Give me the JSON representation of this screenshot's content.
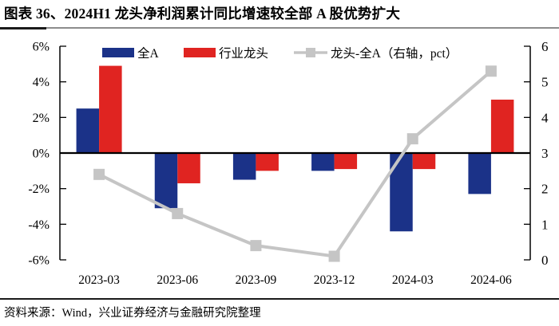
{
  "header": {
    "title": "图表 36、2024H1 龙头净利润累计同比增速较全部 A 股优势扩大"
  },
  "footer": {
    "source": "资料来源：Wind，兴业证券经济与金融研究院整理"
  },
  "colors": {
    "bar_all_a": "#1B3288",
    "bar_leaders": "#E02421",
    "line_diff": "#C5C5C5",
    "axis": "#000000",
    "text": "#000000",
    "rule_dark": "#1A1A1A",
    "rule_gray": "#8C8C8C"
  },
  "chart_data": {
    "type": "bar",
    "title": "2024H1 龙头净利润累计同比增速较全部 A 股优势扩大",
    "categories": [
      "2023-03",
      "2023-06",
      "2023-09",
      "2023-12",
      "2024-03",
      "2024-06"
    ],
    "series": [
      {
        "name": "全A",
        "type": "bar",
        "axis": "left",
        "color_key": "bar_all_a",
        "values": [
          2.5,
          -3.1,
          -1.5,
          -1.0,
          -4.4,
          -2.3
        ]
      },
      {
        "name": "行业龙头",
        "type": "bar",
        "axis": "left",
        "color_key": "bar_leaders",
        "values": [
          4.9,
          -1.7,
          -1.0,
          -0.9,
          -0.9,
          3.0
        ]
      },
      {
        "name": "龙头-全A（右轴，pct）",
        "type": "line",
        "axis": "right",
        "color_key": "line_diff",
        "values": [
          2.4,
          1.3,
          0.4,
          0.1,
          3.4,
          5.3
        ]
      }
    ],
    "left_axis": {
      "min": -6,
      "max": 6,
      "unit": "%",
      "tick_labels": [
        "6%",
        "4%",
        "2%",
        "0%",
        "-2%",
        "-4%",
        "-6%"
      ]
    },
    "right_axis": {
      "min": 0,
      "max": 6,
      "unit": "pct",
      "tick_labels": [
        "6",
        "5",
        "4",
        "3",
        "2",
        "1",
        "0"
      ]
    },
    "legend_position": "top",
    "grid": false
  }
}
